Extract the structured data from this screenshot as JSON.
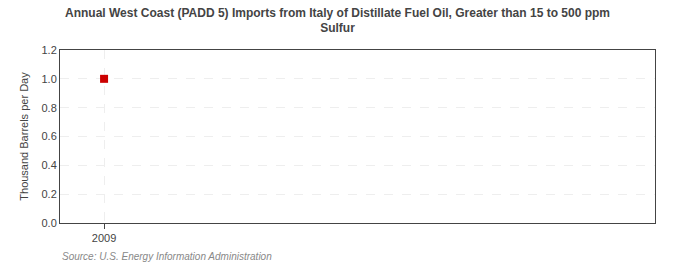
{
  "chart_data": {
    "type": "scatter",
    "title": "Annual West Coast (PADD 5) Imports from Italy of Distillate Fuel Oil, Greater than 15 to 500 ppm\nSulfur",
    "ylabel": "Thousand Barrels per Day",
    "annotations": [
      {
        "text": "Source: U.S. Energy Information Administration"
      }
    ],
    "x": [
      2009
    ],
    "values": [
      1.0
    ],
    "color": "#cc0000",
    "marker": "square",
    "xlim": [
      2008.6,
      2014.0
    ],
    "ylim": [
      0.0,
      1.2
    ],
    "xticks": [
      2009
    ],
    "yticks": [
      {
        "value": 0.0,
        "label": "0.0"
      },
      0.2,
      0.4,
      0.6,
      0.8,
      {
        "value": 1.0,
        "label": "1.0"
      },
      1.2
    ],
    "grid": true
  }
}
